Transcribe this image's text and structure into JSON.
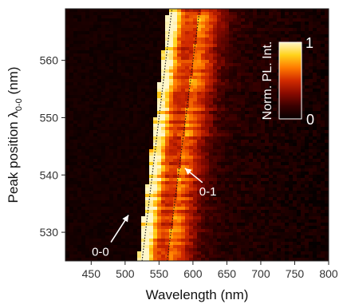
{
  "chart_data": {
    "type": "heatmap",
    "xlabel": "Wavelength (nm)",
    "ylabel_main": "Peak position λ",
    "ylabel_sub": "0-0",
    "ylabel_unit": " (nm)",
    "xlim": [
      412,
      800
    ],
    "ylim": [
      525,
      569
    ],
    "xticks": [
      450,
      500,
      550,
      600,
      650,
      700,
      750,
      800
    ],
    "yticks": [
      530,
      540,
      550,
      560
    ],
    "colorbar": {
      "label": "Norm. PL. Int.",
      "max_label": "1",
      "min_label": "0",
      "colors": [
        "#050000",
        "#3a0000",
        "#8a0a00",
        "#d12a00",
        "#ff7a00",
        "#ffd21a",
        "#fff6c8"
      ]
    },
    "annotations": [
      {
        "text": "0-0",
        "x": 505,
        "y": 533
      },
      {
        "text": "0-1",
        "x": 614,
        "y": 537
      }
    ],
    "series": [
      {
        "name": "0-0",
        "peak_at_y_min": 525,
        "peak_at_y_max": 569
      },
      {
        "name": "0-1",
        "peak_at_y_min": 562,
        "peak_at_y_max": 610
      }
    ]
  }
}
